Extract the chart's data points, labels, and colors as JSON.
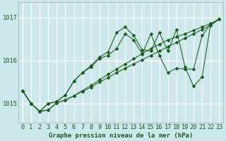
{
  "bg_color": "#cce8ed",
  "grid_color": "#ffffff",
  "line_color": "#1a5c1a",
  "ylim": [
    1014.55,
    1017.35
  ],
  "xlim": [
    -0.5,
    23.5
  ],
  "xlabel": "Graphe pression niveau de la mer (hPa)",
  "xticks": [
    0,
    1,
    2,
    3,
    4,
    5,
    6,
    7,
    8,
    9,
    10,
    11,
    12,
    13,
    14,
    15,
    16,
    17,
    18,
    19,
    20,
    21,
    22,
    23
  ],
  "yticks": [
    1015,
    1016,
    1017
  ],
  "series": [
    [
      1015.3,
      1015.0,
      1014.82,
      1014.85,
      1015.02,
      1015.08,
      1015.18,
      1015.28,
      1015.38,
      1015.5,
      1015.6,
      1015.72,
      1015.82,
      1015.92,
      1016.02,
      1016.12,
      1016.22,
      1016.32,
      1016.42,
      1016.52,
      1016.62,
      1016.72,
      1016.82,
      1016.96
    ],
    [
      1015.3,
      1015.0,
      1014.82,
      1014.85,
      1015.02,
      1015.08,
      1015.18,
      1015.3,
      1015.42,
      1015.55,
      1015.68,
      1015.8,
      1015.92,
      1016.04,
      1016.16,
      1016.28,
      1016.38,
      1016.48,
      1016.55,
      1016.62,
      1016.7,
      1016.78,
      1016.86,
      1016.96
    ],
    [
      1015.3,
      1015.0,
      1014.82,
      1015.0,
      1015.05,
      1015.2,
      1015.52,
      1015.72,
      1015.85,
      1016.05,
      1016.12,
      1016.28,
      1016.62,
      1016.48,
      1016.15,
      1016.62,
      1016.12,
      1015.72,
      1015.82,
      1015.8,
      1015.8,
      1016.58,
      1016.85,
      1016.96
    ],
    [
      1015.3,
      1015.0,
      1014.82,
      1015.0,
      1015.05,
      1015.2,
      1015.52,
      1015.72,
      1015.88,
      1016.08,
      1016.2,
      1016.65,
      1016.78,
      1016.58,
      1016.25,
      1016.22,
      1016.65,
      1016.22,
      1016.72,
      1015.85,
      1015.4,
      1015.62,
      1016.85,
      1016.96
    ]
  ],
  "tick_fontsize": 6.2,
  "xlabel_fontsize": 6.5,
  "marker_size": 2.8
}
